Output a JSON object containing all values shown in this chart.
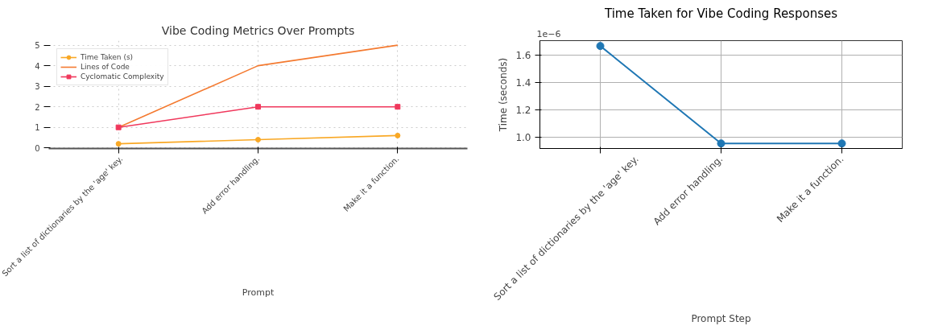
{
  "chart_data": [
    {
      "type": "line",
      "title": "Vibe Coding Metrics Over Prompts",
      "xlabel": "Prompt",
      "categories": [
        "Sort a list of dictionaries by the 'age' key.",
        "Add error handling.",
        "Make it a function."
      ],
      "series": [
        {
          "name": "Time Taken (s)",
          "color": "#f9a825",
          "marker": "circle",
          "values": [
            0.2,
            0.4,
            0.6
          ]
        },
        {
          "name": "Lines of Code",
          "color": "#f47a30",
          "marker": "none",
          "values": [
            1,
            4,
            5
          ]
        },
        {
          "name": "Cyclomatic Complexity",
          "color": "#f0385c",
          "marker": "square",
          "values": [
            1,
            2,
            2
          ]
        }
      ],
      "ylim": [
        -0.03,
        5.22
      ],
      "yticks": [
        0,
        1,
        2,
        3,
        4,
        5
      ],
      "grid": true,
      "legend": "top left"
    },
    {
      "type": "line",
      "title": "Time Taken for Vibe Coding Responses",
      "xlabel": "Prompt Step",
      "ylabel": "Time (seconds)",
      "annotations": [
        "1e−6"
      ],
      "categories": [
        "Sort a list of dictionaries by the 'age' key.",
        "Add error handling.",
        "Make it a function."
      ],
      "series": [
        {
          "color": "#1f77b4",
          "values": [
            1.666,
            0.954,
            0.954
          ]
        }
      ],
      "marker": "circle",
      "ylim": [
        0.917,
        1.705
      ],
      "yticks": [
        {
          "value": 1,
          "label": "1.0"
        },
        1.2,
        1.4,
        1.6
      ],
      "grid": true,
      "legend": false
    }
  ]
}
